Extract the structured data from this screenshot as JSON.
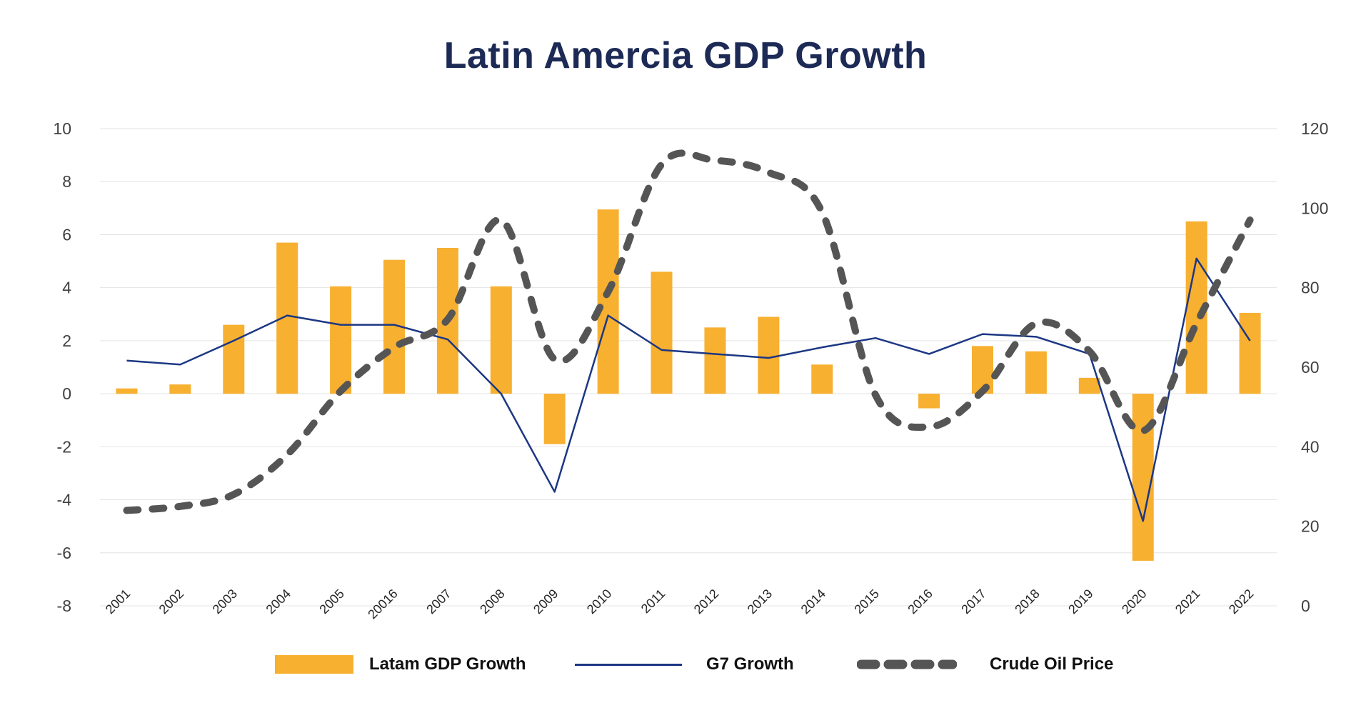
{
  "chart_data": {
    "type": "bar+line",
    "title": "Latin Amercia GDP Growth",
    "categories": [
      "2001",
      "2002",
      "2003",
      "2004",
      "2005",
      "20016",
      "2007",
      "2008",
      "2009",
      "2010",
      "2011",
      "2012",
      "2013",
      "2014",
      "2015",
      "2016",
      "2017",
      "2018",
      "2019",
      "2020",
      "2021",
      "2022"
    ],
    "series": [
      {
        "name": "Latam GDP Growth",
        "type": "bar",
        "axis": "left",
        "color": "#f7b030",
        "values": [
          0.2,
          0.35,
          2.6,
          5.7,
          4.05,
          5.05,
          5.5,
          4.05,
          -1.9,
          6.95,
          4.6,
          2.5,
          2.9,
          1.1,
          null,
          -0.55,
          1.8,
          1.6,
          0.6,
          -6.3,
          6.5,
          3.05
        ]
      },
      {
        "name": "G7 Growth",
        "type": "line",
        "axis": "left",
        "color": "#1c3784",
        "values": [
          1.25,
          1.1,
          2.0,
          2.95,
          2.6,
          2.6,
          2.05,
          0.0,
          -3.7,
          2.95,
          1.65,
          1.5,
          1.35,
          1.75,
          2.1,
          1.5,
          2.25,
          2.15,
          1.5,
          -4.8,
          5.1,
          2.0
        ]
      },
      {
        "name": "Crude Oil Price",
        "type": "line-dashed",
        "axis": "right",
        "color": "#555555",
        "values": [
          24,
          25,
          28,
          38,
          54,
          65,
          72,
          97,
          62,
          79,
          111,
          112,
          109,
          99,
          53,
          45,
          54,
          71,
          64,
          44,
          71,
          97
        ]
      }
    ],
    "y_left": {
      "min": -8,
      "max": 10,
      "ticks": [
        10,
        8,
        6,
        4,
        2,
        0,
        -2,
        -4,
        -6,
        -8
      ]
    },
    "y_right": {
      "min": 0,
      "max": 120,
      "ticks": [
        120,
        100,
        80,
        60,
        40,
        20,
        0
      ]
    },
    "grid": true,
    "legend_position": "bottom"
  },
  "colors": {
    "title": "#1c2a55",
    "bar": "#f7b030",
    "g7": "#1c3784",
    "oil": "#555555",
    "grid": "#e3e3e3"
  }
}
